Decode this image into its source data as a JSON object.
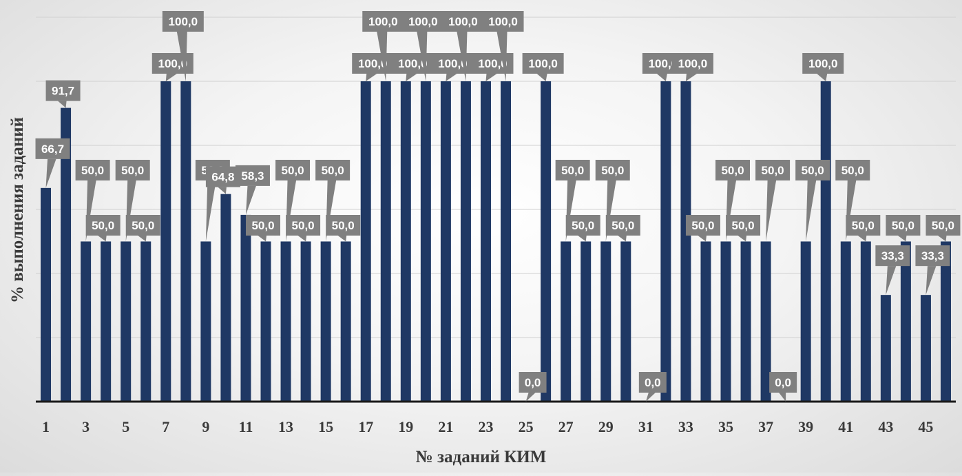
{
  "chart_data": {
    "type": "bar",
    "xlabel": "№ заданий КИМ",
    "ylabel": "% выполнения заданий",
    "ylim": [
      0,
      100
    ],
    "grid": true,
    "colors": {
      "bar": "#1f3864",
      "label_box": "#808080",
      "label_text": "#ffffff",
      "grid": "#d0d0d0"
    },
    "categories": [
      "1",
      "2",
      "3",
      "4",
      "5",
      "6",
      "7",
      "8",
      "9",
      "10",
      "11",
      "12",
      "13",
      "14",
      "15",
      "16",
      "17",
      "18",
      "19",
      "20",
      "21",
      "22",
      "23",
      "24",
      "25",
      "26",
      "27",
      "28",
      "29",
      "30",
      "31",
      "32",
      "33",
      "34",
      "35",
      "36",
      "37",
      "38",
      "39",
      "40",
      "41",
      "42",
      "43",
      "44",
      "45",
      "46"
    ],
    "tick_labels": [
      "1",
      "",
      "3",
      "",
      "5",
      "",
      "7",
      "",
      "9",
      "",
      "11",
      "",
      "13",
      "",
      "15",
      "",
      "17",
      "",
      "19",
      "",
      "21",
      "",
      "23",
      "",
      "25",
      "",
      "27",
      "",
      "29",
      "",
      "31",
      "",
      "33",
      "",
      "35",
      "",
      "37",
      "",
      "39",
      "",
      "41",
      "",
      "43",
      "",
      "45",
      ""
    ],
    "values": [
      66.7,
      91.7,
      50.0,
      50.0,
      50.0,
      50.0,
      100.0,
      100.0,
      50.0,
      64.8,
      58.3,
      50.0,
      50.0,
      50.0,
      50.0,
      50.0,
      100.0,
      100.0,
      100.0,
      100.0,
      100.0,
      100.0,
      100.0,
      100.0,
      0.0,
      100.0,
      50.0,
      50.0,
      50.0,
      50.0,
      0.0,
      100.0,
      100.0,
      50.0,
      50.0,
      50.0,
      50.0,
      0.0,
      50.0,
      100.0,
      50.0,
      50.0,
      33.3,
      50.0,
      33.3,
      50.0
    ],
    "data_labels": [
      "66,7",
      "91,7",
      "50,0",
      "50,0",
      "50,0",
      "50,0",
      "100,0",
      "100,0",
      "50,0",
      "64,8",
      "58,3",
      "50,0",
      "50,0",
      "50,0",
      "50,0",
      "50,0",
      "100,0",
      "100,0",
      "100,0",
      "100,0",
      "100,0",
      "100,0",
      "100,0",
      "100,0",
      "0,0",
      "100,0",
      "50,0",
      "50,0",
      "50,0",
      "50,0",
      "0,0",
      "100,0",
      "100,0",
      "50,0",
      "50,0",
      "50,0",
      "50,0",
      "0,0",
      "50,0",
      "100,0",
      "50,0",
      "50,0",
      "33,3",
      "50,0",
      "33,3",
      "50,0"
    ]
  }
}
